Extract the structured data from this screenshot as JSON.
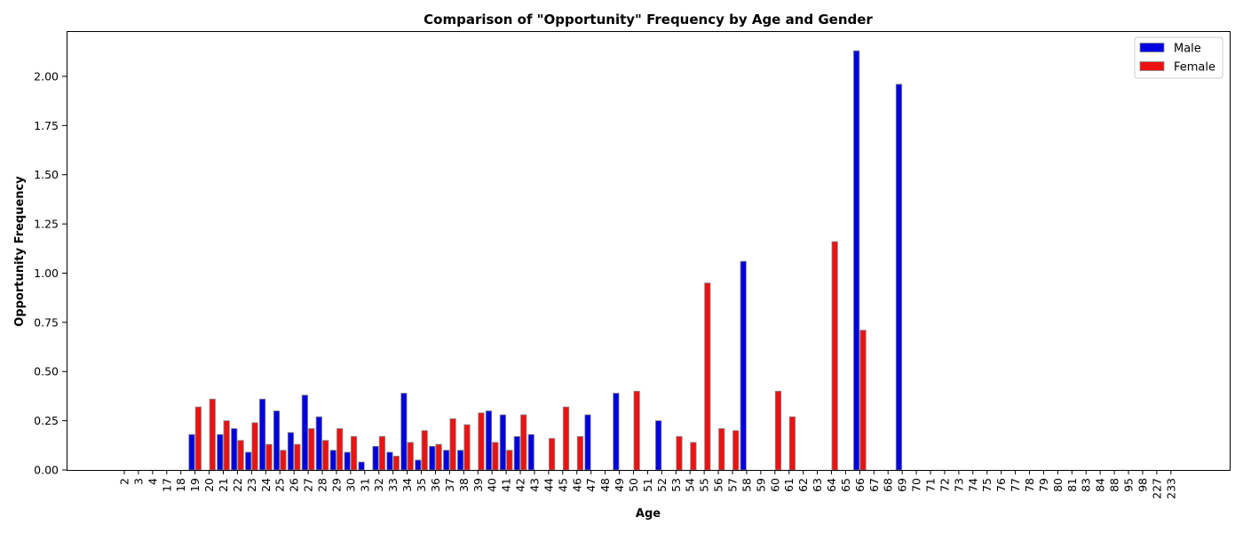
{
  "chart_data": {
    "type": "bar",
    "title": "Comparison of \"Opportunity\" Frequency by Age and Gender",
    "xlabel": "Age",
    "ylabel": "Opportunity Frequency",
    "ylim": [
      0,
      2.23
    ],
    "yticks": [
      "0.00",
      "0.25",
      "0.50",
      "0.75",
      "1.00",
      "1.25",
      "1.50",
      "1.75",
      "2.00"
    ],
    "grid": false,
    "legend_position": "top-right",
    "categories": [
      "2",
      "3",
      "4",
      "17",
      "18",
      "19",
      "20",
      "21",
      "22",
      "23",
      "24",
      "25",
      "26",
      "27",
      "28",
      "29",
      "30",
      "31",
      "32",
      "33",
      "34",
      "35",
      "36",
      "37",
      "38",
      "39",
      "40",
      "41",
      "42",
      "43",
      "44",
      "45",
      "46",
      "47",
      "48",
      "49",
      "50",
      "51",
      "52",
      "53",
      "54",
      "55",
      "56",
      "57",
      "58",
      "59",
      "60",
      "61",
      "62",
      "63",
      "64",
      "65",
      "66",
      "67",
      "68",
      "69",
      "70",
      "71",
      "72",
      "73",
      "74",
      "75",
      "76",
      "77",
      "78",
      "79",
      "80",
      "81",
      "83",
      "84",
      "88",
      "95",
      "98",
      "227",
      "233"
    ],
    "series": [
      {
        "name": "Male",
        "color": "#0000e0",
        "values": [
          0,
          0,
          0,
          0,
          0,
          0.18,
          0,
          0.18,
          0.21,
          0.09,
          0.36,
          0.3,
          0.19,
          0.38,
          0.27,
          0.1,
          0.09,
          0.04,
          0.12,
          0.09,
          0.39,
          0.05,
          0.12,
          0.1,
          0.1,
          0,
          0.3,
          0.28,
          0.17,
          0.18,
          0,
          0,
          0,
          0.28,
          0,
          0.39,
          0,
          0,
          0.25,
          0,
          0,
          0,
          0,
          0,
          1.06,
          0,
          0,
          0,
          0,
          0,
          0,
          0,
          2.13,
          0,
          0,
          1.96,
          0,
          0,
          0,
          0,
          0,
          0,
          0,
          0,
          0,
          0,
          0,
          0,
          0,
          0,
          0,
          0,
          0,
          0,
          0
        ]
      },
      {
        "name": "Female",
        "color": "#ee1111",
        "values": [
          0,
          0,
          0,
          0,
          0,
          0.32,
          0.36,
          0.25,
          0.15,
          0.24,
          0.13,
          0.1,
          0.13,
          0.21,
          0.15,
          0.21,
          0.17,
          0,
          0.17,
          0.07,
          0.14,
          0.2,
          0.13,
          0.26,
          0.23,
          0.29,
          0.14,
          0.1,
          0.28,
          0,
          0.16,
          0.32,
          0.17,
          0,
          0,
          0,
          0.4,
          0,
          0,
          0.17,
          0.14,
          0.95,
          0.21,
          0.2,
          0,
          0,
          0.4,
          0.27,
          0,
          0,
          1.16,
          0,
          0.71,
          0,
          0,
          0,
          0,
          0,
          0,
          0,
          0,
          0,
          0,
          0,
          0,
          0,
          0,
          0,
          0,
          0,
          0,
          0,
          0,
          0,
          0
        ]
      }
    ]
  }
}
